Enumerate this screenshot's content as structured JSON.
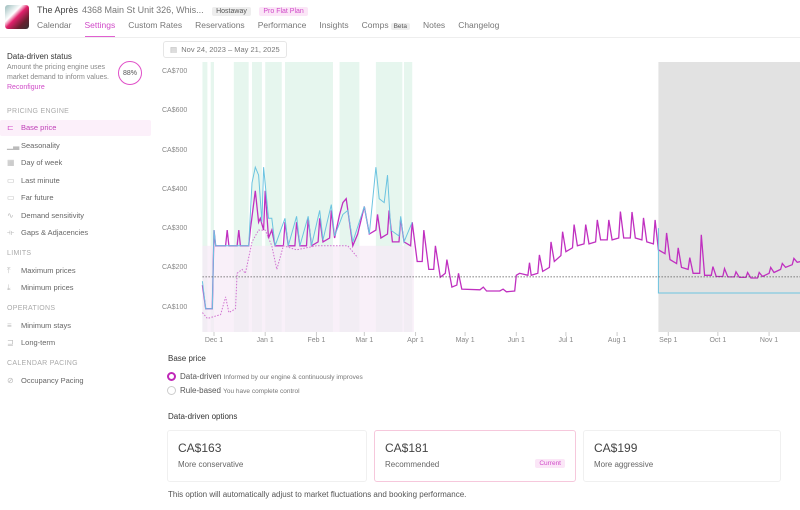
{
  "header": {
    "property_name": "The Après",
    "address": "4368 Main St Unit 326, Whis...",
    "channel_badge": "Hostaway",
    "plan_badge": "Pro Flat Plan",
    "tabs": [
      {
        "label": "Calendar"
      },
      {
        "label": "Settings",
        "active": true
      },
      {
        "label": "Custom Rates"
      },
      {
        "label": "Reservations"
      },
      {
        "label": "Performance"
      },
      {
        "label": "Insights"
      },
      {
        "label": "Comps",
        "badge": "Beta"
      },
      {
        "label": "Notes"
      },
      {
        "label": "Changelog"
      }
    ]
  },
  "sidebar": {
    "status_title": "Data-driven status",
    "status_desc": "Amount the pricing engine uses market demand to inform values.",
    "status_link": "Reconfigure",
    "status_value": "88%",
    "status_fraction": 0.88,
    "sections": [
      {
        "label": "PRICING ENGINE"
      },
      {
        "label": "LIMITS"
      },
      {
        "label": "OPERATIONS"
      },
      {
        "label": "CALENDAR PACING"
      }
    ],
    "items": [
      {
        "label": "Base price",
        "icon": "base-price-icon",
        "active": true
      },
      {
        "label": "Seasonality",
        "icon": "bar-chart-icon"
      },
      {
        "label": "Day of week",
        "icon": "calendar-icon"
      },
      {
        "label": "Last minute",
        "icon": "clock-icon"
      },
      {
        "label": "Far future",
        "icon": "far-future-icon"
      },
      {
        "label": "Demand sensitivity",
        "icon": "wave-icon"
      },
      {
        "label": "Gaps & Adjacencies",
        "icon": "gaps-icon"
      },
      {
        "label": "Maximum prices",
        "icon": "arrow-up-icon"
      },
      {
        "label": "Minimum prices",
        "icon": "arrow-down-icon"
      },
      {
        "label": "Minimum stays",
        "icon": "list-icon"
      },
      {
        "label": "Long-term",
        "icon": "long-term-icon"
      },
      {
        "label": "Occupancy Pacing",
        "icon": "link-icon"
      }
    ]
  },
  "date_range": {
    "start": "Nov 24, 2023",
    "sep": "–",
    "end": "May 21, 2025"
  },
  "chart_data": {
    "type": "line",
    "ylim": [
      0,
      720
    ],
    "grid": false,
    "y_ticks": [
      "CA$100",
      "CA$200",
      "CA$300",
      "CA$400",
      "CA$500",
      "CA$600",
      "CA$700"
    ],
    "y_tick_values": [
      100,
      200,
      300,
      400,
      500,
      600,
      700
    ],
    "x_ticks": [
      {
        "label": "Dec 1",
        "date": "2023-12-01"
      },
      {
        "label": "Jan 1",
        "date": "2024-01-01"
      },
      {
        "label": "Feb 1",
        "date": "2024-02-01"
      },
      {
        "label": "Mar 1",
        "date": "2024-03-01"
      },
      {
        "label": "Apr 1",
        "date": "2024-04-01"
      },
      {
        "label": "May 1",
        "date": "2024-05-01"
      },
      {
        "label": "Jun 1",
        "date": "2024-06-01"
      },
      {
        "label": "Jul 1",
        "date": "2024-07-01"
      },
      {
        "label": "Aug 1",
        "date": "2024-08-01"
      },
      {
        "label": "Sep 1",
        "date": "2024-09-01"
      },
      {
        "label": "Oct 1",
        "date": "2024-10-01"
      },
      {
        "label": "Nov 1",
        "date": "2024-11-01"
      }
    ],
    "x_range": [
      "2023-11-24",
      "2024-11-26"
    ],
    "reference_line": 181,
    "future_shaded_from": "2024-08-26",
    "highlight_ranges": [
      [
        "2023-11-24",
        "2023-11-27"
      ],
      [
        "2023-11-29",
        "2023-12-01"
      ],
      [
        "2023-12-13",
        "2023-12-22"
      ],
      [
        "2023-12-24",
        "2023-12-30"
      ],
      [
        "2024-01-01",
        "2024-01-11"
      ],
      [
        "2024-01-13",
        "2024-02-11"
      ],
      [
        "2024-02-15",
        "2024-02-27"
      ],
      [
        "2024-03-08",
        "2024-03-24"
      ],
      [
        "2024-03-25",
        "2024-03-30"
      ]
    ],
    "series": [
      {
        "color": "#c030c0",
        "style": "solid",
        "points": [
          [
            "2023-11-24",
            160
          ],
          [
            "2023-11-26",
            100
          ],
          [
            "2023-11-30",
            100
          ],
          [
            "2023-12-01",
            300
          ],
          [
            "2023-12-02",
            260
          ],
          [
            "2023-12-08",
            260
          ],
          [
            "2023-12-09",
            300
          ],
          [
            "2023-12-10",
            260
          ],
          [
            "2023-12-15",
            260
          ],
          [
            "2023-12-16",
            300
          ],
          [
            "2023-12-17",
            260
          ],
          [
            "2023-12-22",
            260
          ],
          [
            "2023-12-23",
            300
          ],
          [
            "2023-12-26",
            400
          ],
          [
            "2023-12-28",
            320
          ],
          [
            "2023-12-29",
            330
          ],
          [
            "2023-12-31",
            300
          ],
          [
            "2024-01-01",
            400
          ],
          [
            "2024-01-03",
            280
          ],
          [
            "2024-01-05",
            300
          ],
          [
            "2024-01-07",
            260
          ],
          [
            "2024-01-12",
            260
          ],
          [
            "2024-01-13",
            320
          ],
          [
            "2024-01-15",
            260
          ],
          [
            "2024-01-19",
            260
          ],
          [
            "2024-01-20",
            320
          ],
          [
            "2024-01-22",
            260
          ],
          [
            "2024-01-26",
            260
          ],
          [
            "2024-01-27",
            330
          ],
          [
            "2024-01-29",
            260
          ],
          [
            "2024-02-02",
            270
          ],
          [
            "2024-02-03",
            330
          ],
          [
            "2024-02-05",
            270
          ],
          [
            "2024-02-09",
            280
          ],
          [
            "2024-02-10",
            350
          ],
          [
            "2024-02-12",
            280
          ],
          [
            "2024-02-15",
            340
          ],
          [
            "2024-02-17",
            370
          ],
          [
            "2024-02-19",
            380
          ],
          [
            "2024-02-21",
            320
          ],
          [
            "2024-02-23",
            260
          ],
          [
            "2024-02-26",
            290
          ],
          [
            "2024-03-01",
            360
          ],
          [
            "2024-03-04",
            290
          ],
          [
            "2024-03-08",
            300
          ],
          [
            "2024-03-09",
            340
          ],
          [
            "2024-03-11",
            280
          ],
          [
            "2024-03-15",
            290
          ],
          [
            "2024-03-16",
            350
          ],
          [
            "2024-03-18",
            270
          ],
          [
            "2024-03-22",
            270
          ],
          [
            "2024-03-23",
            330
          ],
          [
            "2024-03-25",
            270
          ],
          [
            "2024-03-29",
            260
          ],
          [
            "2024-03-30",
            320
          ],
          [
            "2024-04-02",
            220
          ],
          [
            "2024-04-05",
            220
          ],
          [
            "2024-04-06",
            300
          ],
          [
            "2024-04-09",
            200
          ],
          [
            "2024-04-12",
            200
          ],
          [
            "2024-04-13",
            260
          ],
          [
            "2024-04-16",
            180
          ],
          [
            "2024-04-19",
            190
          ],
          [
            "2024-04-20",
            225
          ],
          [
            "2024-04-23",
            155
          ],
          [
            "2024-04-26",
            160
          ],
          [
            "2024-04-27",
            190
          ],
          [
            "2024-04-29",
            150
          ],
          [
            "2024-05-10",
            148
          ],
          [
            "2024-05-12",
            155
          ],
          [
            "2024-05-14",
            145
          ],
          [
            "2024-05-22",
            145
          ],
          [
            "2024-05-24",
            150
          ],
          [
            "2024-05-26",
            143
          ],
          [
            "2024-05-31",
            145
          ],
          [
            "2024-06-01",
            185
          ],
          [
            "2024-06-03",
            190
          ],
          [
            "2024-06-08",
            185
          ],
          [
            "2024-06-09",
            217
          ],
          [
            "2024-06-10",
            185
          ],
          [
            "2024-06-14",
            190
          ],
          [
            "2024-06-15",
            237
          ],
          [
            "2024-06-17",
            195
          ],
          [
            "2024-06-21",
            205
          ],
          [
            "2024-06-22",
            270
          ],
          [
            "2024-06-24",
            220
          ],
          [
            "2024-06-28",
            235
          ],
          [
            "2024-06-29",
            296
          ],
          [
            "2024-07-01",
            245
          ],
          [
            "2024-07-05",
            255
          ],
          [
            "2024-07-06",
            314
          ],
          [
            "2024-07-08",
            260
          ],
          [
            "2024-07-12",
            265
          ],
          [
            "2024-07-13",
            314
          ],
          [
            "2024-07-15",
            265
          ],
          [
            "2024-07-19",
            270
          ],
          [
            "2024-07-20",
            326
          ],
          [
            "2024-07-22",
            275
          ],
          [
            "2024-07-26",
            275
          ],
          [
            "2024-07-27",
            326
          ],
          [
            "2024-07-29",
            275
          ],
          [
            "2024-08-02",
            280
          ],
          [
            "2024-08-03",
            347
          ],
          [
            "2024-08-05",
            280
          ],
          [
            "2024-08-09",
            280
          ],
          [
            "2024-08-10",
            346
          ],
          [
            "2024-08-12",
            280
          ],
          [
            "2024-08-16",
            275
          ],
          [
            "2024-08-17",
            331
          ],
          [
            "2024-08-19",
            270
          ],
          [
            "2024-08-23",
            265
          ],
          [
            "2024-08-24",
            326
          ],
          [
            "2024-08-26",
            250
          ],
          [
            "2024-08-30",
            240
          ],
          [
            "2024-08-31",
            293
          ],
          [
            "2024-09-02",
            225
          ],
          [
            "2024-09-06",
            215
          ],
          [
            "2024-09-07",
            255
          ],
          [
            "2024-09-09",
            205
          ],
          [
            "2024-09-13",
            200
          ],
          [
            "2024-09-14",
            230
          ],
          [
            "2024-09-16",
            190
          ],
          [
            "2024-09-20",
            190
          ],
          [
            "2024-09-21",
            288
          ],
          [
            "2024-09-23",
            185
          ],
          [
            "2024-09-27",
            185
          ],
          [
            "2024-09-28",
            207
          ],
          [
            "2024-09-30",
            182
          ],
          [
            "2024-10-04",
            182
          ],
          [
            "2024-10-05",
            202
          ],
          [
            "2024-10-07",
            181
          ],
          [
            "2024-10-11",
            181
          ],
          [
            "2024-10-12",
            194
          ],
          [
            "2024-10-14",
            180
          ],
          [
            "2024-10-18",
            180
          ],
          [
            "2024-10-19",
            192
          ],
          [
            "2024-10-21",
            178
          ],
          [
            "2024-10-25",
            178
          ],
          [
            "2024-10-26",
            192
          ],
          [
            "2024-10-28",
            182
          ],
          [
            "2024-11-01",
            190
          ],
          [
            "2024-11-02",
            205
          ],
          [
            "2024-11-04",
            192
          ],
          [
            "2024-11-08",
            200
          ],
          [
            "2024-11-09",
            215
          ],
          [
            "2024-11-11",
            205
          ],
          [
            "2024-11-15",
            212
          ],
          [
            "2024-11-16",
            228
          ],
          [
            "2024-11-18",
            218
          ],
          [
            "2024-11-22",
            222
          ],
          [
            "2024-11-23",
            225
          ],
          [
            "2024-11-26",
            222
          ]
        ]
      },
      {
        "color": "#6cc4e0",
        "style": "solid",
        "points": [
          [
            "2023-11-24",
            170
          ],
          [
            "2023-11-26",
            100
          ],
          [
            "2023-11-30",
            100
          ],
          [
            "2023-12-01",
            300
          ],
          [
            "2023-12-02",
            260
          ],
          [
            "2023-12-22",
            260
          ],
          [
            "2023-12-24",
            420
          ],
          [
            "2023-12-26",
            460
          ],
          [
            "2023-12-28",
            440
          ],
          [
            "2023-12-30",
            320
          ],
          [
            "2023-12-31",
            460
          ],
          [
            "2024-01-03",
            330
          ],
          [
            "2024-01-05",
            330
          ],
          [
            "2024-01-07",
            260
          ],
          [
            "2024-01-13",
            330
          ],
          [
            "2024-01-15",
            260
          ],
          [
            "2024-01-20",
            335
          ],
          [
            "2024-01-22",
            260
          ],
          [
            "2024-01-27",
            335
          ],
          [
            "2024-01-29",
            260
          ],
          [
            "2024-02-03",
            350
          ],
          [
            "2024-02-05",
            275
          ],
          [
            "2024-02-10",
            365
          ],
          [
            "2024-02-12",
            285
          ],
          [
            "2024-02-17",
            340
          ],
          [
            "2024-02-20",
            350
          ],
          [
            "2024-02-23",
            270
          ],
          [
            "2024-03-01",
            360
          ],
          [
            "2024-03-04",
            290
          ],
          [
            "2024-03-08",
            460
          ],
          [
            "2024-03-10",
            380
          ],
          [
            "2024-03-13",
            370
          ],
          [
            "2024-03-15",
            440
          ],
          [
            "2024-03-17",
            300
          ],
          [
            "2024-03-22",
            285
          ],
          [
            "2024-03-23",
            335
          ],
          [
            "2024-03-25",
            270
          ],
          [
            "2024-03-30",
            320
          ]
        ]
      },
      {
        "color": "#6cc4e0",
        "style": "solid",
        "points": [
          [
            "2024-08-26",
            305
          ],
          [
            "2024-08-26",
            140
          ],
          [
            "2024-11-26",
            140
          ]
        ]
      },
      {
        "color": "#d070d0",
        "style": "dotted",
        "points": [
          [
            "2023-11-24",
            90
          ],
          [
            "2023-11-27",
            75
          ],
          [
            "2023-12-05",
            85
          ],
          [
            "2023-12-08",
            130
          ],
          [
            "2023-12-10",
            90
          ],
          [
            "2023-12-14",
            100
          ],
          [
            "2023-12-15",
            190
          ],
          [
            "2023-12-18",
            200
          ],
          [
            "2023-12-20",
            190
          ],
          [
            "2023-12-24",
            270
          ],
          [
            "2023-12-28",
            300
          ],
          [
            "2024-01-01",
            300
          ],
          [
            "2024-01-05",
            260
          ],
          [
            "2024-01-08",
            200
          ],
          [
            "2024-01-12",
            260
          ],
          [
            "2024-01-20",
            250
          ],
          [
            "2024-02-01",
            260
          ],
          [
            "2024-02-20",
            260
          ],
          [
            "2024-02-26",
            230
          ]
        ]
      }
    ]
  },
  "base_price": {
    "heading": "Base price",
    "options": [
      {
        "label": "Data-driven",
        "desc": "Informed by our engine & continuously improves",
        "selected": true
      },
      {
        "label": "Rule-based",
        "desc": "You have complete control",
        "selected": false
      }
    ]
  },
  "options": {
    "heading": "Data-driven options",
    "cards": [
      {
        "price": "CA$163",
        "label": "More conservative"
      },
      {
        "price": "CA$181",
        "label": "Recommended",
        "badge": "Current",
        "selected": true
      },
      {
        "price": "CA$199",
        "label": "More aggressive"
      }
    ],
    "footer": "This option will automatically adjust to market fluctuations and booking performance."
  }
}
